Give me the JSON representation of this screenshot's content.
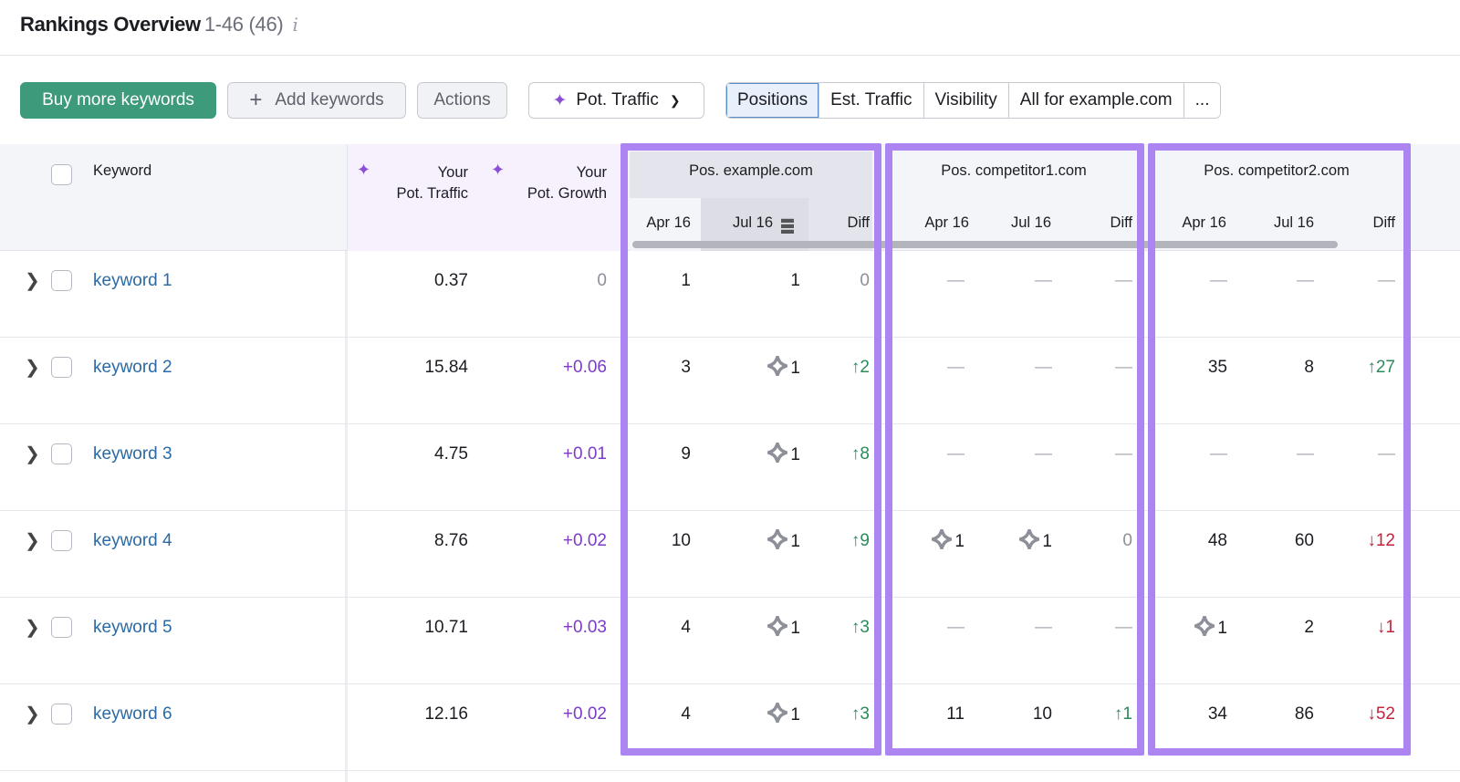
{
  "header": {
    "title": "Rankings Overview",
    "range": "1-46 (46)",
    "info_icon": "info-icon"
  },
  "toolbar": {
    "buy": "Buy more keywords",
    "add": "Add keywords",
    "add_icon": "plus-icon",
    "actions": "Actions",
    "pot_traffic": "Pot. Traffic",
    "views": [
      "Positions",
      "Est. Traffic",
      "Visibility",
      "All for example.com",
      "..."
    ],
    "active_view": "Positions"
  },
  "table": {
    "col_keyword": "Keyword",
    "col_pot_traffic": [
      "Your",
      "Pot. Traffic"
    ],
    "col_pot_growth": [
      "Your",
      "Pot. Growth"
    ],
    "domains": [
      "Pos. example.com",
      "Pos. competitor1.com",
      "Pos. competitor2.com"
    ],
    "sub": [
      "Apr 16",
      "Jul 16",
      "Diff"
    ],
    "sorted_column": "Jul 16",
    "rows": [
      {
        "keyword": "keyword 1",
        "pot_traffic": "0.37",
        "pot_growth": "0",
        "pos": [
          {
            "apr": "1",
            "jul": "1",
            "diff": "0",
            "dir": "zero"
          },
          {
            "apr": "—",
            "jul": "—",
            "diff": "—",
            "dir": "dash"
          },
          {
            "apr": "—",
            "jul": "—",
            "diff": "—",
            "dir": "dash"
          }
        ]
      },
      {
        "keyword": "keyword 2",
        "pot_traffic": "15.84",
        "pot_growth": "+0.06",
        "pos": [
          {
            "apr": "3",
            "jul": "1",
            "jul_feature": true,
            "diff": "↑2",
            "dir": "up"
          },
          {
            "apr": "—",
            "jul": "—",
            "diff": "—",
            "dir": "dash"
          },
          {
            "apr": "35",
            "jul": "8",
            "diff": "↑27",
            "dir": "up"
          }
        ]
      },
      {
        "keyword": "keyword 3",
        "pot_traffic": "4.75",
        "pot_growth": "+0.01",
        "pos": [
          {
            "apr": "9",
            "jul": "1",
            "jul_feature": true,
            "diff": "↑8",
            "dir": "up"
          },
          {
            "apr": "—",
            "jul": "—",
            "diff": "—",
            "dir": "dash"
          },
          {
            "apr": "—",
            "jul": "—",
            "diff": "—",
            "dir": "dash"
          }
        ]
      },
      {
        "keyword": "keyword 4",
        "pot_traffic": "8.76",
        "pot_growth": "+0.02",
        "pos": [
          {
            "apr": "10",
            "jul": "1",
            "jul_feature": true,
            "diff": "↑9",
            "dir": "up"
          },
          {
            "apr": "1",
            "apr_feature": true,
            "jul": "1",
            "jul_feature": true,
            "diff": "0",
            "dir": "zero"
          },
          {
            "apr": "48",
            "jul": "60",
            "diff": "↓12",
            "dir": "down"
          }
        ]
      },
      {
        "keyword": "keyword 5",
        "pot_traffic": "10.71",
        "pot_growth": "+0.03",
        "pos": [
          {
            "apr": "4",
            "jul": "1",
            "jul_feature": true,
            "diff": "↑3",
            "dir": "up"
          },
          {
            "apr": "—",
            "jul": "—",
            "diff": "—",
            "dir": "dash"
          },
          {
            "apr": "1",
            "apr_feature": true,
            "jul": "2",
            "diff": "↓1",
            "dir": "down"
          }
        ]
      },
      {
        "keyword": "keyword 6",
        "pot_traffic": "12.16",
        "pot_growth": "+0.02",
        "pos": [
          {
            "apr": "4",
            "jul": "1",
            "jul_feature": true,
            "diff": "↑3",
            "dir": "up"
          },
          {
            "apr": "11",
            "jul": "10",
            "diff": "↑1",
            "dir": "up"
          },
          {
            "apr": "34",
            "jul": "86",
            "diff": "↓52",
            "dir": "down"
          }
        ]
      }
    ]
  },
  "colors": {
    "accent_green": "#3d9a7a",
    "highlight_purple": "#ad85f3",
    "up": "#2c8a5b",
    "down": "#c3243d",
    "link": "#2b6aa5"
  }
}
